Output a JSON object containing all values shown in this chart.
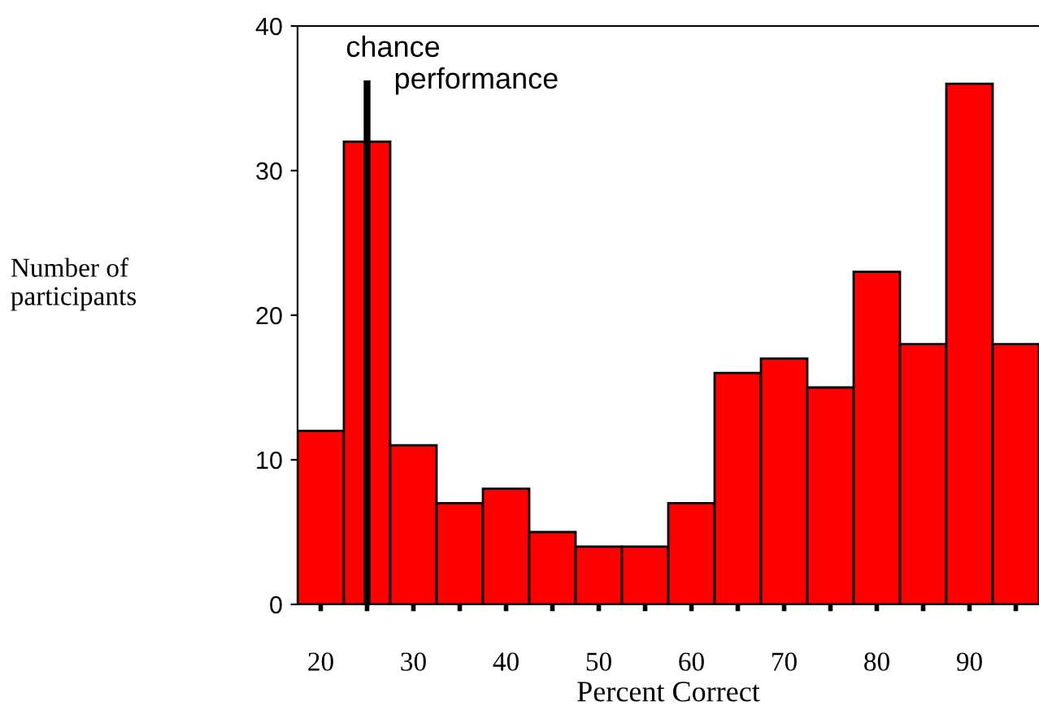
{
  "chart_data": {
    "type": "histogram",
    "xlabel": "Percent Correct",
    "ylabel": "Number of\nparticipants",
    "bins": [
      17.5,
      22.5,
      27.5,
      32.5,
      37.5,
      42.5,
      47.5,
      52.5,
      57.5,
      62.5,
      67.5,
      72.5,
      77.5,
      82.5,
      87.5,
      92.5,
      97.5
    ],
    "values": [
      12,
      32,
      11,
      7,
      8,
      5,
      4,
      4,
      7,
      16,
      17,
      15,
      23,
      18,
      36,
      18
    ],
    "color": "#ff0000",
    "xlim": [
      17.5,
      97.5
    ],
    "ylim": [
      0,
      40
    ],
    "xticks": [
      20,
      {
        "value": 25,
        "label": null
      },
      30,
      {
        "value": 35,
        "label": null
      },
      40,
      {
        "value": 45,
        "label": null
      },
      50,
      {
        "value": 55,
        "label": null
      },
      60,
      {
        "value": 65,
        "label": null
      },
      70,
      {
        "value": 75,
        "label": null
      },
      80,
      {
        "value": 85,
        "label": null
      },
      90,
      {
        "value": 95,
        "label": null
      }
    ],
    "yticks": [
      0,
      10,
      20,
      30,
      40
    ],
    "ref_lines": [
      {
        "axis": "x",
        "value": 25,
        "color": "#000000"
      }
    ],
    "annotations": [
      "chance",
      "performance"
    ],
    "grid": false
  }
}
